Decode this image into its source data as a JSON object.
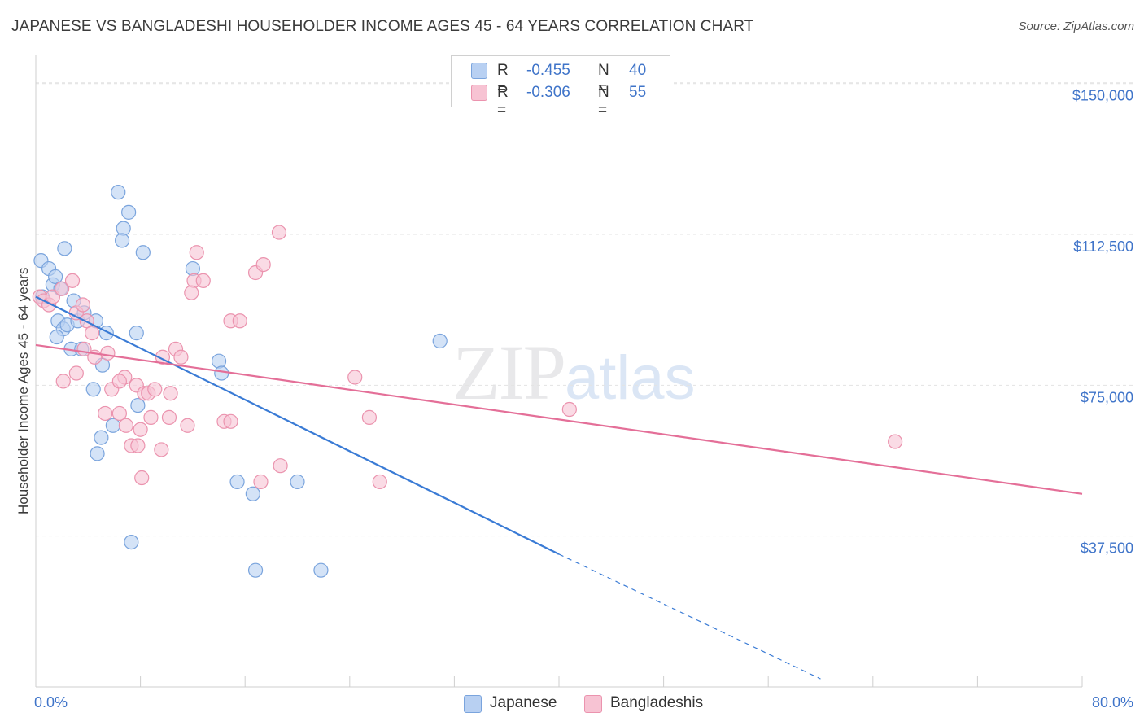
{
  "header": {
    "title": "JAPANESE VS BANGLADESHI HOUSEHOLDER INCOME AGES 45 - 64 YEARS CORRELATION CHART",
    "source": "Source: ZipAtlas.com"
  },
  "watermark": {
    "zip": "ZIP",
    "atlas": "atlas"
  },
  "legend_top": [
    {
      "r_label": "R =",
      "r_value": "-0.455",
      "n_label": "N =",
      "n_value": "40",
      "color": "#b8d0f2"
    },
    {
      "r_label": "R =",
      "r_value": "-0.306",
      "n_label": "N =",
      "n_value": "55",
      "color": "#f7c3d3"
    }
  ],
  "legend_bottom": [
    {
      "label": "Japanese",
      "color": "#b8d0f2"
    },
    {
      "label": "Bangladeshis",
      "color": "#f7c3d3"
    }
  ],
  "colors": {
    "japanese_fill": "#b8d0f2",
    "japanese_stroke": "#7aa4dd",
    "japanese_line": "#3a7bd5",
    "bangladeshi_fill": "#f7c3d3",
    "bangladeshi_stroke": "#eb93ae",
    "bangladeshi_line": "#e46f98",
    "tick_text": "#3f74c9",
    "grid": "#e3e3e3"
  },
  "chart_data": {
    "type": "scatter",
    "title": "JAPANESE VS BANGLADESHI HOUSEHOLDER INCOME AGES 45 - 64 YEARS CORRELATION CHART",
    "xlabel": "",
    "ylabel": "Householder Income Ages 45 - 64 years",
    "xlim": [
      0,
      80
    ],
    "ylim": [
      0,
      155000
    ],
    "x_tick_labels": [
      "0.0%",
      "80.0%"
    ],
    "y_ticks": [
      37500,
      75000,
      112500,
      150000
    ],
    "y_tick_labels": [
      "$37,500",
      "$75,000",
      "$112,500",
      "$150,000"
    ],
    "grid": true,
    "legend_position": "bottom",
    "series": [
      {
        "name": "Japanese",
        "points": [
          [
            0.4,
            106000
          ],
          [
            1.0,
            104000
          ],
          [
            1.3,
            100000
          ],
          [
            1.5,
            102000
          ],
          [
            0.5,
            97000
          ],
          [
            1.9,
            99000
          ],
          [
            2.2,
            109000
          ],
          [
            1.7,
            91000
          ],
          [
            2.1,
            89000
          ],
          [
            2.4,
            90000
          ],
          [
            2.9,
            96000
          ],
          [
            3.2,
            91000
          ],
          [
            3.7,
            93000
          ],
          [
            4.6,
            91000
          ],
          [
            2.7,
            84000
          ],
          [
            3.5,
            84000
          ],
          [
            5.1,
            80000
          ],
          [
            4.4,
            74000
          ],
          [
            5.4,
            88000
          ],
          [
            6.3,
            123000
          ],
          [
            7.1,
            118000
          ],
          [
            6.7,
            114000
          ],
          [
            6.6,
            111000
          ],
          [
            8.2,
            108000
          ],
          [
            5.0,
            62000
          ],
          [
            4.7,
            58000
          ],
          [
            7.8,
            70000
          ],
          [
            7.7,
            88000
          ],
          [
            12.0,
            104000
          ],
          [
            14.0,
            81000
          ],
          [
            14.2,
            78000
          ],
          [
            15.4,
            51000
          ],
          [
            16.6,
            48000
          ],
          [
            16.8,
            29000
          ],
          [
            20.0,
            51000
          ],
          [
            21.8,
            29000
          ],
          [
            30.9,
            86000
          ],
          [
            5.9,
            65000
          ],
          [
            7.3,
            36000
          ],
          [
            1.6,
            87000
          ]
        ]
      },
      {
        "name": "Bangladeshis",
        "points": [
          [
            0.3,
            97000
          ],
          [
            0.6,
            96000
          ],
          [
            1.0,
            95000
          ],
          [
            1.3,
            97000
          ],
          [
            2.0,
            99000
          ],
          [
            2.8,
            101000
          ],
          [
            3.1,
            93000
          ],
          [
            3.6,
            95000
          ],
          [
            3.9,
            91000
          ],
          [
            4.3,
            88000
          ],
          [
            3.7,
            84000
          ],
          [
            3.1,
            78000
          ],
          [
            2.1,
            76000
          ],
          [
            4.5,
            82000
          ],
          [
            5.5,
            83000
          ],
          [
            5.8,
            74000
          ],
          [
            6.8,
            77000
          ],
          [
            6.4,
            76000
          ],
          [
            7.7,
            75000
          ],
          [
            8.3,
            73000
          ],
          [
            8.6,
            73000
          ],
          [
            9.1,
            74000
          ],
          [
            9.7,
            82000
          ],
          [
            10.7,
            84000
          ],
          [
            10.3,
            73000
          ],
          [
            11.1,
            82000
          ],
          [
            5.3,
            68000
          ],
          [
            6.4,
            68000
          ],
          [
            6.9,
            65000
          ],
          [
            7.3,
            60000
          ],
          [
            8.0,
            64000
          ],
          [
            8.8,
            67000
          ],
          [
            10.2,
            67000
          ],
          [
            11.6,
            65000
          ],
          [
            14.4,
            66000
          ],
          [
            14.9,
            66000
          ],
          [
            9.6,
            59000
          ],
          [
            7.8,
            60000
          ],
          [
            8.1,
            52000
          ],
          [
            12.1,
            101000
          ],
          [
            12.8,
            101000
          ],
          [
            14.9,
            91000
          ],
          [
            15.6,
            91000
          ],
          [
            16.8,
            103000
          ],
          [
            17.4,
            105000
          ],
          [
            18.6,
            113000
          ],
          [
            12.3,
            108000
          ],
          [
            18.7,
            55000
          ],
          [
            17.2,
            51000
          ],
          [
            24.4,
            77000
          ],
          [
            25.5,
            67000
          ],
          [
            26.3,
            51000
          ],
          [
            40.8,
            69000
          ],
          [
            65.7,
            61000
          ],
          [
            11.9,
            98000
          ]
        ]
      }
    ],
    "trend_lines": [
      {
        "series": "Japanese",
        "x": [
          0,
          40
        ],
        "y": [
          97000,
          33000
        ],
        "dashed_to": [
          60,
          2000
        ]
      },
      {
        "series": "Bangladeshis",
        "x": [
          0,
          80
        ],
        "y": [
          85000,
          48000
        ]
      }
    ]
  }
}
